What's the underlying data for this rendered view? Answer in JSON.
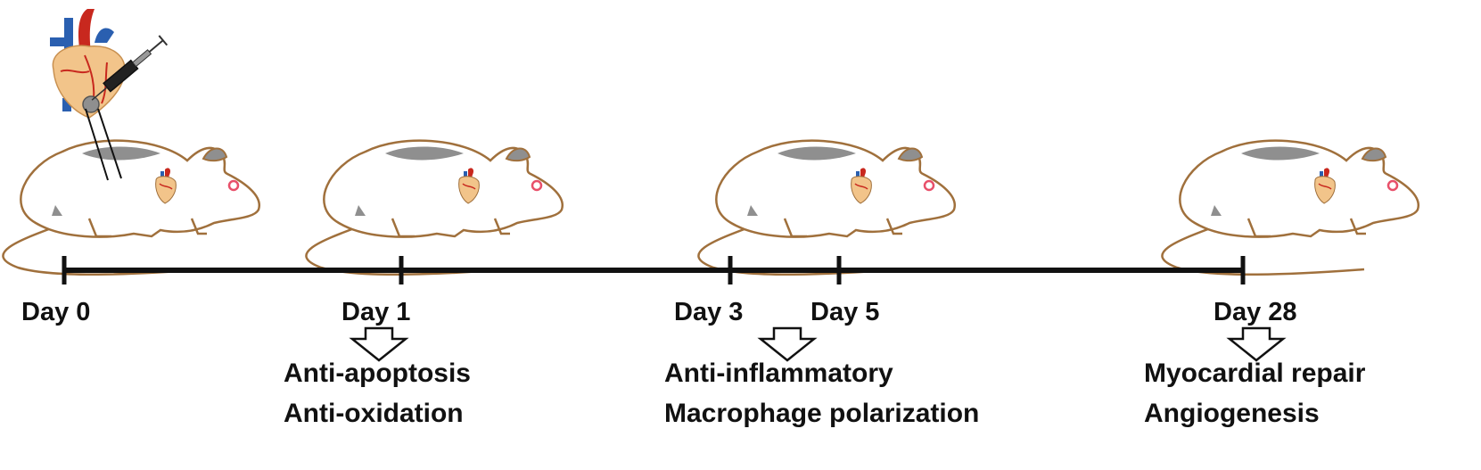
{
  "timeline": {
    "days": [
      {
        "label": "Day 0"
      },
      {
        "label": "Day 1"
      },
      {
        "label": "Day 3"
      },
      {
        "label": "Day 5"
      },
      {
        "label": "Day 28"
      }
    ]
  },
  "effects": [
    {
      "lines": [
        "Anti-apoptosis",
        "Anti-oxidation"
      ]
    },
    {
      "lines": [
        "Anti-inflammatory",
        "Macrophage polarization"
      ]
    },
    {
      "lines": [
        "Myocardial repair",
        "Angiogenesis"
      ]
    }
  ],
  "colors": {
    "line": "#111111",
    "rat_outline": "#a0703c",
    "rat_patch": "#8f8f8f",
    "heart_red": "#c8281e",
    "heart_blue": "#2a5fb0",
    "heart_tissue": "#f2c48a",
    "eye": "#e8506a"
  },
  "icons": [
    "heart-icon",
    "syringe-icon",
    "rat-icon",
    "arrow-down-icon"
  ]
}
